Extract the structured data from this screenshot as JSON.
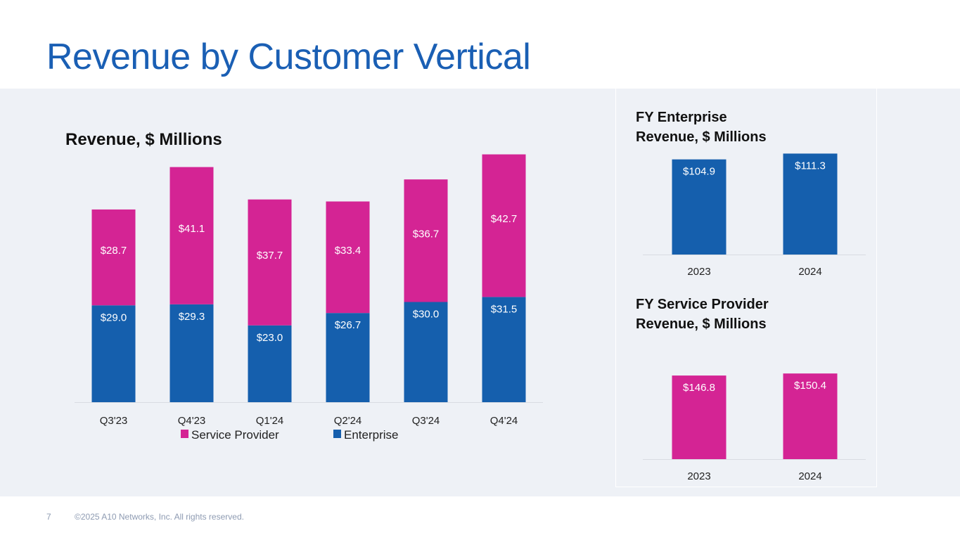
{
  "slide": {
    "title": "Revenue by Customer Vertical",
    "page_number": "7",
    "copyright": "©2025 A10 Networks, Inc. All rights reserved."
  },
  "colors": {
    "enterprise": "#155fad",
    "service_provider": "#d42494",
    "title": "#1a5fb4",
    "background_band": "#eef1f6"
  },
  "chart_data": [
    {
      "id": "quarterly",
      "type": "bar",
      "stacked": true,
      "title": "Revenue, $ Millions",
      "xlabel": "",
      "ylabel": "",
      "categories": [
        "Q3'23",
        "Q4'23",
        "Q1'24",
        "Q2'24",
        "Q3'24",
        "Q4'24"
      ],
      "series": [
        {
          "name": "Enterprise",
          "values": [
            29.0,
            29.3,
            23.0,
            26.7,
            30.0,
            31.5
          ],
          "labels": [
            "$29.0",
            "$29.3",
            "$23.0",
            "$26.7",
            "$30.0",
            "$31.5"
          ]
        },
        {
          "name": "Service Provider",
          "values": [
            28.7,
            41.1,
            37.7,
            33.4,
            36.7,
            42.7
          ],
          "labels": [
            "$28.7",
            "$41.1",
            "$37.7",
            "$33.4",
            "$36.7",
            "$42.7"
          ]
        }
      ],
      "legend": {
        "position": "bottom",
        "entries": [
          "Service Provider",
          "Enterprise"
        ]
      },
      "ylim": [
        0,
        80
      ],
      "grid": false
    },
    {
      "id": "fy_enterprise",
      "type": "bar",
      "title": "FY Enterprise Revenue, $ Millions",
      "title_lines": [
        "FY Enterprise",
        "Revenue, $ Millions"
      ],
      "categories": [
        "2023",
        "2024"
      ],
      "values": [
        104.9,
        111.3
      ],
      "labels": [
        "$104.9",
        "$111.3"
      ],
      "series_name": "Enterprise",
      "ylim": [
        0,
        120
      ],
      "grid": false
    },
    {
      "id": "fy_service_provider",
      "type": "bar",
      "title": "FY Service Provider Revenue, $ Millions",
      "title_lines": [
        "FY Service Provider",
        "Revenue, $ Millions"
      ],
      "categories": [
        "2023",
        "2024"
      ],
      "values": [
        146.8,
        150.4
      ],
      "labels": [
        "$146.8",
        "$150.4"
      ],
      "series_name": "Service Provider",
      "ylim": [
        0,
        200
      ],
      "grid": false
    }
  ]
}
